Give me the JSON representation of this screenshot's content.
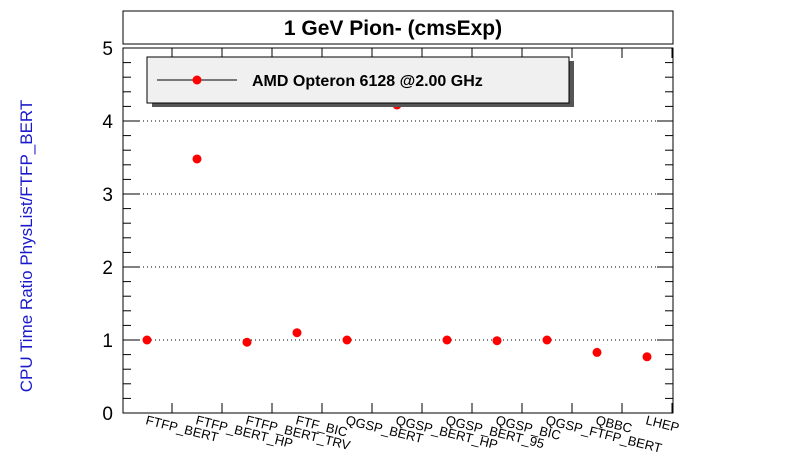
{
  "chart_data": {
    "type": "scatter",
    "title": "1 GeV Pion- (cmsExp)",
    "xlabel": "",
    "ylabel": "CPU Time Ratio PhysList/FTFP_BERT",
    "ylim": [
      0,
      5
    ],
    "yticks": [
      "0",
      "1",
      "2",
      "3",
      "4",
      "5"
    ],
    "grid": "horizontal dotted",
    "legend_position": "top-left",
    "categories": [
      "FTFP_BERT",
      "FTFP_BERT_HP",
      "FTFP_BERT_TRV",
      "FTF_BIC",
      "QGSP_BERT",
      "QGSP_BERT_HP",
      "QGSP_BERT_95",
      "QGSP_BIC",
      "QGSP_FTFP_BERT",
      "QBBC",
      "LHEP"
    ],
    "series": [
      {
        "name": "AMD Opteron 6128 @2.00 GHz",
        "color": "#ff0000",
        "values": [
          1.0,
          3.48,
          0.97,
          1.1,
          1.0,
          4.22,
          1.0,
          0.99,
          1.0,
          0.83,
          0.77
        ]
      }
    ]
  }
}
